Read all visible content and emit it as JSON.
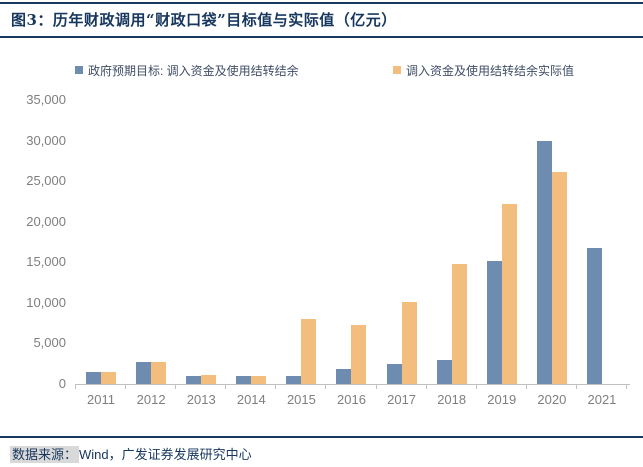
{
  "figure": {
    "title": "图3：历年财政调用“财政口袋”目标值与实际值（亿元）"
  },
  "legend": {
    "target_label": "政府预期目标: 调入资金及使用结转结余",
    "actual_label": "调入资金及使用结转结余实际值"
  },
  "colors": {
    "accent_navy": "#17375e",
    "target_blue": "#6e8cb0",
    "actual_orange": "#f2bd7d",
    "axis_gray": "#7f7f7f",
    "axis_line_gray": "#c0c0c0"
  },
  "chart_data": {
    "type": "bar",
    "title": "图3：历年财政调用“财政口袋”目标值与实际值（亿元）",
    "xlabel": "",
    "ylabel": "",
    "categories": [
      "2011",
      "2012",
      "2013",
      "2014",
      "2015",
      "2016",
      "2017",
      "2018",
      "2019",
      "2020",
      "2021"
    ],
    "series": [
      {
        "name": "政府预期目标: 调入资金及使用结转结余",
        "key": "target",
        "color": "#6e8cb0",
        "values": [
          1500,
          2700,
          1000,
          1000,
          1000,
          1800,
          2500,
          2900,
          15100,
          30000,
          16800
        ]
      },
      {
        "name": "调入资金及使用结转结余实际值",
        "key": "actual",
        "color": "#f2bd7d",
        "values": [
          1500,
          2700,
          1150,
          1000,
          8000,
          7300,
          10100,
          14800,
          22200,
          26100,
          null
        ]
      }
    ],
    "ylim": [
      0,
      35000
    ],
    "ytick_step": 5000,
    "ytick_labels": [
      "0",
      "5,000",
      "10,000",
      "15,000",
      "20,000",
      "25,000",
      "30,000",
      "35,000"
    ],
    "grid": false,
    "legend_position": "top"
  },
  "footer": {
    "source_label": "数据来源：",
    "source_text": "Wind，广发证券发展研究中心"
  }
}
